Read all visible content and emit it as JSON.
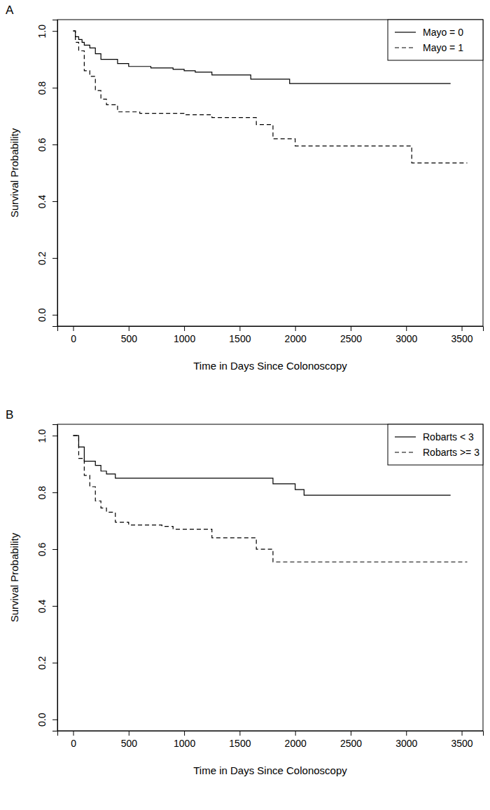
{
  "chart_data": [
    {
      "type": "step",
      "title": "A",
      "x_label": "Time in Days Since Colonoscopy",
      "y_label": "Survival Probability",
      "xlim": [
        -142,
        3692
      ],
      "ylim": [
        -0.04,
        1.04
      ],
      "xticks": [
        0,
        500,
        1000,
        1500,
        2000,
        2500,
        3000,
        3500
      ],
      "yticks": [
        {
          "value": 0,
          "label": "0.0"
        },
        0.2,
        0.4,
        0.6,
        0.8,
        {
          "value": 1,
          "label": "1.0"
        }
      ],
      "legend": "topright",
      "series": [
        {
          "name": "Mayo = 0",
          "color": "#000000",
          "line_style": "solid",
          "x": [
            0,
            20,
            50,
            80,
            100,
            150,
            200,
            250,
            400,
            500,
            700,
            900,
            1000,
            1100,
            1250,
            1600,
            1950,
            3400
          ],
          "values": [
            1.0,
            0.98,
            0.97,
            0.96,
            0.95,
            0.94,
            0.92,
            0.9,
            0.885,
            0.875,
            0.87,
            0.865,
            0.86,
            0.855,
            0.845,
            0.83,
            0.815,
            0.815
          ]
        },
        {
          "name": "Mayo = 1",
          "color": "#000000",
          "line_style": "dashed",
          "x": [
            0,
            20,
            50,
            100,
            150,
            200,
            250,
            300,
            400,
            600,
            1000,
            1250,
            1650,
            1800,
            2000,
            3050,
            3550
          ],
          "values": [
            1.0,
            0.96,
            0.93,
            0.86,
            0.84,
            0.79,
            0.76,
            0.74,
            0.715,
            0.71,
            0.705,
            0.695,
            0.67,
            0.62,
            0.595,
            0.535,
            0.535
          ]
        }
      ]
    },
    {
      "type": "step",
      "title": "B",
      "x_label": "Time in Days Since Colonoscopy",
      "y_label": "Survival Probability",
      "xlim": [
        -142,
        3692
      ],
      "ylim": [
        -0.04,
        1.04
      ],
      "xticks": [
        0,
        500,
        1000,
        1500,
        2000,
        2500,
        3000,
        3500
      ],
      "yticks": [
        {
          "value": 0,
          "label": "0.0"
        },
        0.2,
        0.4,
        0.6,
        0.8,
        {
          "value": 1,
          "label": "1.0"
        }
      ],
      "legend": "topright",
      "series": [
        {
          "name": "Robarts < 3",
          "color": "#000000",
          "line_style": "solid",
          "x": [
            0,
            50,
            100,
            200,
            250,
            300,
            380,
            1800,
            2000,
            2080,
            3400
          ],
          "values": [
            1.0,
            0.96,
            0.91,
            0.895,
            0.875,
            0.865,
            0.85,
            0.83,
            0.81,
            0.79,
            0.79
          ]
        },
        {
          "name": "Robarts >= 3",
          "color": "#000000",
          "line_style": "dashed",
          "x": [
            0,
            50,
            100,
            150,
            200,
            250,
            300,
            380,
            500,
            800,
            900,
            1250,
            1650,
            1800,
            3550
          ],
          "values": [
            1.0,
            0.92,
            0.86,
            0.82,
            0.77,
            0.745,
            0.73,
            0.695,
            0.685,
            0.68,
            0.67,
            0.64,
            0.6,
            0.555,
            0.555
          ]
        }
      ]
    }
  ]
}
